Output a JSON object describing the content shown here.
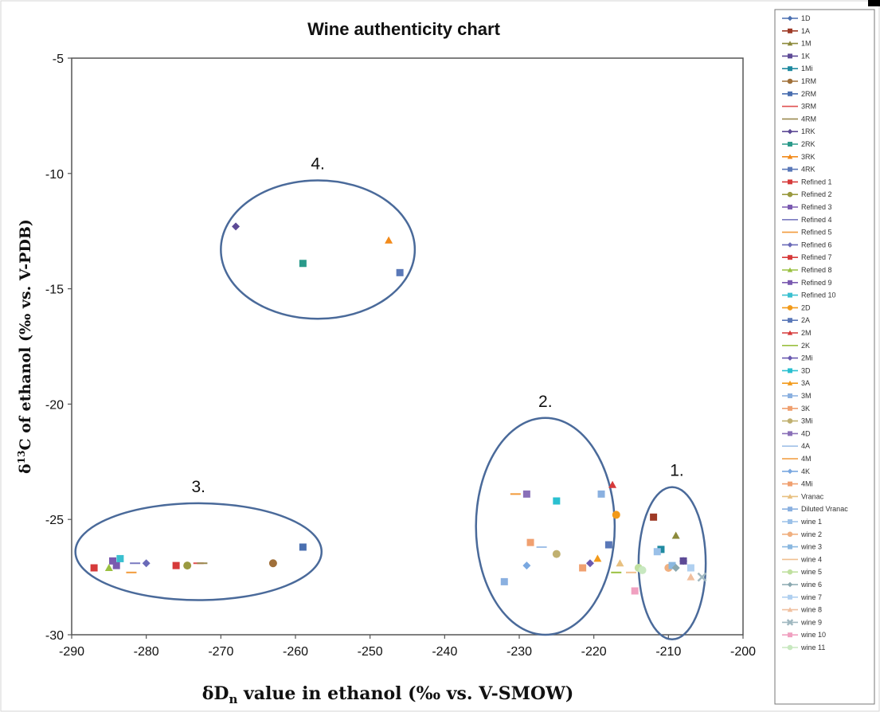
{
  "chart_data": {
    "type": "scatter",
    "title": "Wine authenticity chart",
    "xlabel_main": "δD",
    "xlabel_sub": "n",
    "xlabel_rest": " value in ethanol (‰ vs. V-SMOW)",
    "ylabel_main": "δ",
    "ylabel_sup": "13",
    "ylabel_rest": "C  of ethanol (‰ vs. V-PDB)",
    "xlim": [
      -290,
      -200
    ],
    "ylim": [
      -30,
      -5
    ],
    "x_ticks": [
      "-290",
      "-280",
      "-270",
      "-260",
      "-250",
      "-240",
      "-230",
      "-220",
      "-210",
      "-200"
    ],
    "y_ticks": [
      "-30",
      "-25",
      "-20",
      "-15",
      "-10",
      "-5"
    ],
    "groups": [
      {
        "label": "1.",
        "cx": -209.5,
        "cy": -26.9,
        "rx": 4.5,
        "ry": 3.3
      },
      {
        "label": "2.",
        "cx": -226.5,
        "cy": -25.3,
        "rx": 9.3,
        "ry": 4.7
      },
      {
        "label": "3.",
        "cx": -273,
        "cy": -26.4,
        "rx": 16.5,
        "ry": 2.1
      },
      {
        "label": "4.",
        "cx": -257,
        "cy": -13.3,
        "rx": 13,
        "ry": 3.0
      }
    ],
    "series": [
      {
        "name": "1D",
        "color": "#4a6fb0",
        "marker": "diamond",
        "points": [
          [
            -208,
            -26.8
          ]
        ]
      },
      {
        "name": "1A",
        "color": "#9e3a26",
        "marker": "square",
        "points": [
          [
            -212,
            -24.9
          ]
        ]
      },
      {
        "name": "1M",
        "color": "#8c8a3b",
        "marker": "triangle",
        "points": [
          [
            -209,
            -25.7
          ]
        ]
      },
      {
        "name": "1K",
        "color": "#5d4a96",
        "marker": "square",
        "points": [
          [
            -208,
            -26.8
          ]
        ]
      },
      {
        "name": "1Mi",
        "color": "#1f8aa0",
        "marker": "square",
        "points": [
          [
            -211,
            -26.3
          ]
        ]
      },
      {
        "name": "1RM",
        "color": "#a0703a",
        "marker": "circle",
        "points": [
          [
            -263,
            -26.9
          ]
        ]
      },
      {
        "name": "2RM",
        "color": "#4a6fb0",
        "marker": "square",
        "points": [
          [
            -259,
            -26.2
          ]
        ]
      },
      {
        "name": "3RM",
        "color": "#e05050",
        "marker": "line",
        "points": [
          [
            -273,
            -26.9
          ]
        ]
      },
      {
        "name": "4RM",
        "color": "#9a8a50",
        "marker": "line",
        "points": [
          [
            -272.5,
            -26.9
          ]
        ]
      },
      {
        "name": "1RK",
        "color": "#5d4a96",
        "marker": "diamond",
        "points": [
          [
            -268,
            -12.3
          ]
        ]
      },
      {
        "name": "2RK",
        "color": "#2a9a8a",
        "marker": "square",
        "points": [
          [
            -259,
            -13.9
          ]
        ]
      },
      {
        "name": "3RK",
        "color": "#f28a1a",
        "marker": "triangle",
        "points": [
          [
            -247.5,
            -12.9
          ]
        ]
      },
      {
        "name": "4RK",
        "color": "#5a78b8",
        "marker": "square",
        "points": [
          [
            -246,
            -14.3
          ]
        ]
      },
      {
        "name": "Refined 1",
        "color": "#d63a3a",
        "marker": "square",
        "points": [
          [
            -276,
            -27.0
          ]
        ]
      },
      {
        "name": "Refined 2",
        "color": "#9a9a40",
        "marker": "circle",
        "points": [
          [
            -274.5,
            -27.0
          ]
        ]
      },
      {
        "name": "Refined 3",
        "color": "#7a5ab0",
        "marker": "square",
        "points": [
          [
            -284.5,
            -26.8
          ]
        ]
      },
      {
        "name": "Refined 4",
        "color": "#7a7ac0",
        "marker": "line",
        "points": [
          [
            -281.5,
            -26.9
          ]
        ]
      },
      {
        "name": "Refined 5",
        "color": "#f29a3a",
        "marker": "line",
        "points": [
          [
            -282,
            -27.3
          ]
        ]
      },
      {
        "name": "Refined 6",
        "color": "#6a6ab8",
        "marker": "diamond",
        "points": [
          [
            -280,
            -26.9
          ]
        ]
      },
      {
        "name": "Refined 7",
        "color": "#d63a3a",
        "marker": "square",
        "points": [
          [
            -287,
            -27.1
          ]
        ]
      },
      {
        "name": "Refined 8",
        "color": "#9ac040",
        "marker": "triangle",
        "points": [
          [
            -285,
            -27.1
          ]
        ]
      },
      {
        "name": "Refined 9",
        "color": "#7a5ab0",
        "marker": "square",
        "points": [
          [
            -284,
            -27.0
          ]
        ]
      },
      {
        "name": "Refined 10",
        "color": "#3ac0d0",
        "marker": "square",
        "points": [
          [
            -283.5,
            -26.7
          ]
        ]
      },
      {
        "name": "2D",
        "color": "#f29a1a",
        "marker": "circle",
        "points": [
          [
            -217,
            -24.8
          ]
        ]
      },
      {
        "name": "2A",
        "color": "#5a78b8",
        "marker": "square",
        "points": [
          [
            -218,
            -26.1
          ]
        ]
      },
      {
        "name": "2M",
        "color": "#d63a3a",
        "marker": "triangle",
        "points": [
          [
            -217.5,
            -23.5
          ]
        ]
      },
      {
        "name": "2K",
        "color": "#9ac040",
        "marker": "line",
        "points": [
          [
            -217,
            -27.3
          ]
        ]
      },
      {
        "name": "2Mi",
        "color": "#6a5ab0",
        "marker": "diamond",
        "points": [
          [
            -220.5,
            -26.9
          ]
        ]
      },
      {
        "name": "3D",
        "color": "#2ac0d0",
        "marker": "square",
        "points": [
          [
            -225,
            -24.2
          ]
        ]
      },
      {
        "name": "3A",
        "color": "#f29a1a",
        "marker": "triangle",
        "points": [
          [
            -219.5,
            -26.7
          ]
        ]
      },
      {
        "name": "3M",
        "color": "#8ab0e0",
        "marker": "square",
        "points": [
          [
            -219,
            -23.9
          ]
        ]
      },
      {
        "name": "3K",
        "color": "#f0a070",
        "marker": "square",
        "points": [
          [
            -228.5,
            -26.0
          ]
        ]
      },
      {
        "name": "3Mi",
        "color": "#c0b070",
        "marker": "circle",
        "points": [
          [
            -225,
            -26.5
          ]
        ]
      },
      {
        "name": "4D",
        "color": "#8a70b8",
        "marker": "square",
        "points": [
          [
            -229,
            -23.9
          ]
        ]
      },
      {
        "name": "4A",
        "color": "#a0c0e8",
        "marker": "line",
        "points": [
          [
            -227,
            -26.2
          ]
        ]
      },
      {
        "name": "4M",
        "color": "#f29a3a",
        "marker": "line",
        "points": [
          [
            -230.5,
            -23.9
          ]
        ]
      },
      {
        "name": "4K",
        "color": "#7aa8e0",
        "marker": "diamond",
        "points": [
          [
            -229,
            -27.0
          ]
        ]
      },
      {
        "name": "4Mi",
        "color": "#f0a070",
        "marker": "square",
        "points": [
          [
            -221.5,
            -27.1
          ]
        ]
      },
      {
        "name": "Vranac",
        "color": "#e8c080",
        "marker": "triangle",
        "points": [
          [
            -216.5,
            -26.9
          ]
        ]
      },
      {
        "name": "Diluted Vranac",
        "color": "#8ab0e0",
        "marker": "square",
        "points": [
          [
            -232,
            -27.7
          ]
        ]
      },
      {
        "name": "wine 1",
        "color": "#9ac0e8",
        "marker": "square",
        "points": [
          [
            -211.5,
            -26.4
          ]
        ]
      },
      {
        "name": "wine 2",
        "color": "#f0b080",
        "marker": "circle",
        "points": [
          [
            -210,
            -27.1
          ]
        ]
      },
      {
        "name": "wine 3",
        "color": "#8ab8e0",
        "marker": "square",
        "points": [
          [
            -209.5,
            -27.0
          ]
        ]
      },
      {
        "name": "wine 4",
        "color": "#f0c090",
        "marker": "line",
        "points": [
          [
            -215,
            -27.3
          ]
        ]
      },
      {
        "name": "wine 5",
        "color": "#c0e0a0",
        "marker": "circle",
        "points": [
          [
            -214,
            -27.1
          ]
        ]
      },
      {
        "name": "wine 6",
        "color": "#8aa8b0",
        "marker": "diamond",
        "points": [
          [
            -209,
            -27.1
          ]
        ]
      },
      {
        "name": "wine 7",
        "color": "#b0d0f0",
        "marker": "square",
        "points": [
          [
            -207,
            -27.1
          ]
        ]
      },
      {
        "name": "wine 8",
        "color": "#f0c0a0",
        "marker": "triangle",
        "points": [
          [
            -207,
            -27.5
          ]
        ]
      },
      {
        "name": "wine 9",
        "color": "#a0b8c0",
        "marker": "cross",
        "points": [
          [
            -205.5,
            -27.5
          ]
        ]
      },
      {
        "name": "wine 10",
        "color": "#f0a0c0",
        "marker": "square",
        "points": [
          [
            -214.5,
            -28.1
          ]
        ]
      },
      {
        "name": "wine 11",
        "color": "#c8e8c0",
        "marker": "circle",
        "points": [
          [
            -213.5,
            -27.2
          ]
        ]
      }
    ]
  }
}
